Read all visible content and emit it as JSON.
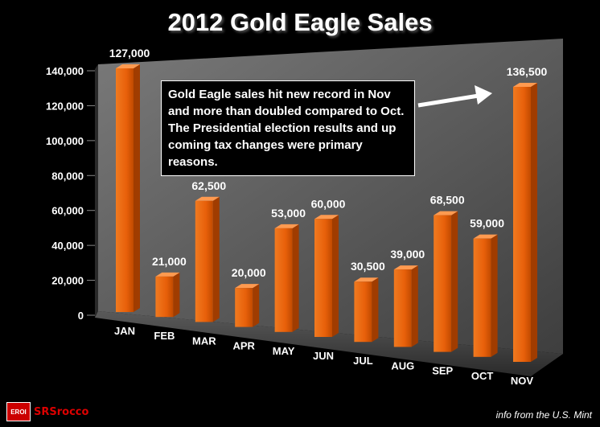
{
  "title": "2012 Gold Eagle Sales",
  "annotation": "Gold Eagle sales hit new record in Nov and more than doubled compared to Oct.  The Presidential election results and up coming tax changes were primary reasons.",
  "logo": {
    "mark": "EROI",
    "text": "SRSrocco"
  },
  "source": "info from  the U.S. Mint",
  "colors": {
    "bar": "#e8600a",
    "bar_dark": "#a03c00",
    "background": "#000000",
    "wall": "#6e6e6e"
  },
  "chart_data": {
    "type": "bar",
    "title": "2012 Gold Eagle Sales",
    "categories": [
      "JAN",
      "FEB",
      "MAR",
      "APR",
      "MAY",
      "JUN",
      "JUL",
      "AUG",
      "SEP",
      "OCT",
      "NOV"
    ],
    "values": [
      127000,
      21000,
      62500,
      20000,
      53000,
      60000,
      30500,
      39000,
      68500,
      59000,
      136500
    ],
    "value_labels": [
      "127,000",
      "21,000",
      "62,500",
      "20,000",
      "53,000",
      "60,000",
      "30,500",
      "39,000",
      "68,500",
      "59,000",
      "136,500"
    ],
    "ylim": [
      0,
      140000
    ],
    "yticks": [
      "0",
      "20,000",
      "40,000",
      "60,000",
      "80,000",
      "100,000",
      "120,000",
      "140,000"
    ],
    "grid": false,
    "legend": "none"
  }
}
